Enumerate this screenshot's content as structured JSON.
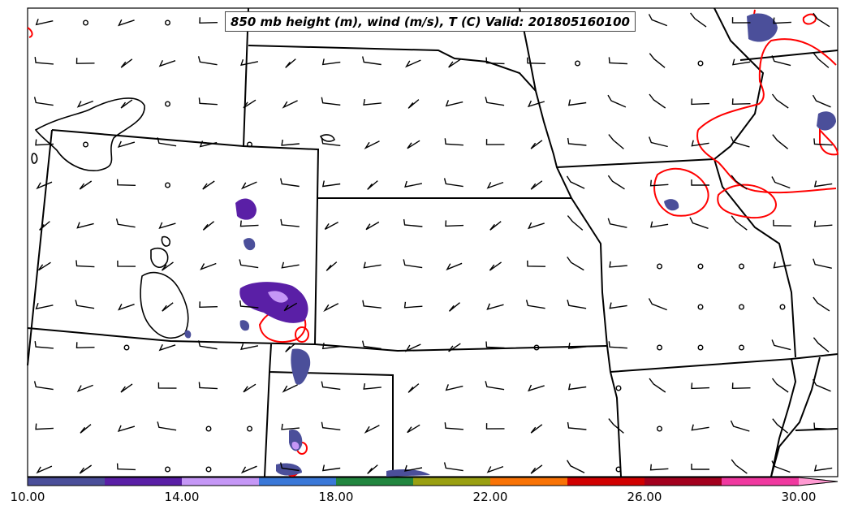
{
  "title": "850 mb height (m), wind (m/s), T (C) Valid: 201805160100",
  "colorbar": {
    "labels": [
      "10.00",
      "14.00",
      "18.00",
      "22.00",
      "26.00",
      "30.00"
    ],
    "colors": [
      "#4b4f9a",
      "#5a1fa6",
      "#c597f6",
      "#3a78d8",
      "#22863f",
      "#9aa012",
      "#f97306",
      "#d10000",
      "#a3001e",
      "#f039a0",
      "#ff9ad2"
    ]
  },
  "colors": {
    "state_borders": "#000000",
    "temperature_contour": "#ff0000",
    "height_contour": "#000000",
    "wind_barbs": "#000000"
  }
}
